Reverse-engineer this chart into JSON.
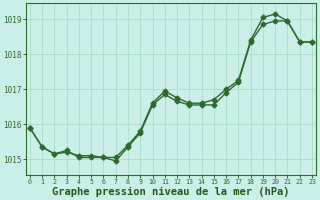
{
  "line1_x": [
    0,
    1,
    2,
    3,
    4,
    5,
    6,
    7,
    8,
    9,
    10,
    11,
    12,
    13,
    14,
    15,
    16,
    17,
    18,
    19,
    20,
    21,
    22,
    23
  ],
  "line1_y": [
    1015.9,
    1015.35,
    1015.15,
    1015.25,
    1015.05,
    1015.05,
    1015.05,
    1014.95,
    1015.35,
    1015.75,
    1016.55,
    1016.85,
    1016.65,
    1016.55,
    1016.55,
    1016.55,
    1016.9,
    1017.2,
    1018.35,
    1018.85,
    1018.95,
    1018.95,
    1018.35,
    1018.35
  ],
  "line2_x": [
    0,
    1,
    2,
    3,
    4,
    5,
    6,
    7,
    8,
    9,
    10,
    11,
    12,
    13,
    14,
    15,
    16,
    17,
    18,
    19,
    20,
    21,
    22,
    23
  ],
  "line2_y": [
    1015.9,
    1015.35,
    1015.15,
    1015.2,
    1015.1,
    1015.1,
    1015.05,
    1015.05,
    1015.4,
    1015.8,
    1016.6,
    1016.95,
    1016.75,
    1016.6,
    1016.6,
    1016.7,
    1017.0,
    1017.25,
    1018.4,
    1019.05,
    1019.15,
    1018.95,
    1018.35,
    1018.35
  ],
  "line_color": "#2d6a2d",
  "bg_color": "#cceee8",
  "grid_color": "#aaddcc",
  "ylabel_values": [
    1015,
    1016,
    1017,
    1018,
    1019
  ],
  "ylim_min": 1014.55,
  "ylim_max": 1019.45,
  "xlim_min": -0.3,
  "xlim_max": 23.3,
  "title": "Graphe pression niveau de la mer (hPa)",
  "title_color": "#1a5a1a",
  "title_fontsize": 7.5,
  "marker_size": 2.5,
  "linewidth": 1.0
}
